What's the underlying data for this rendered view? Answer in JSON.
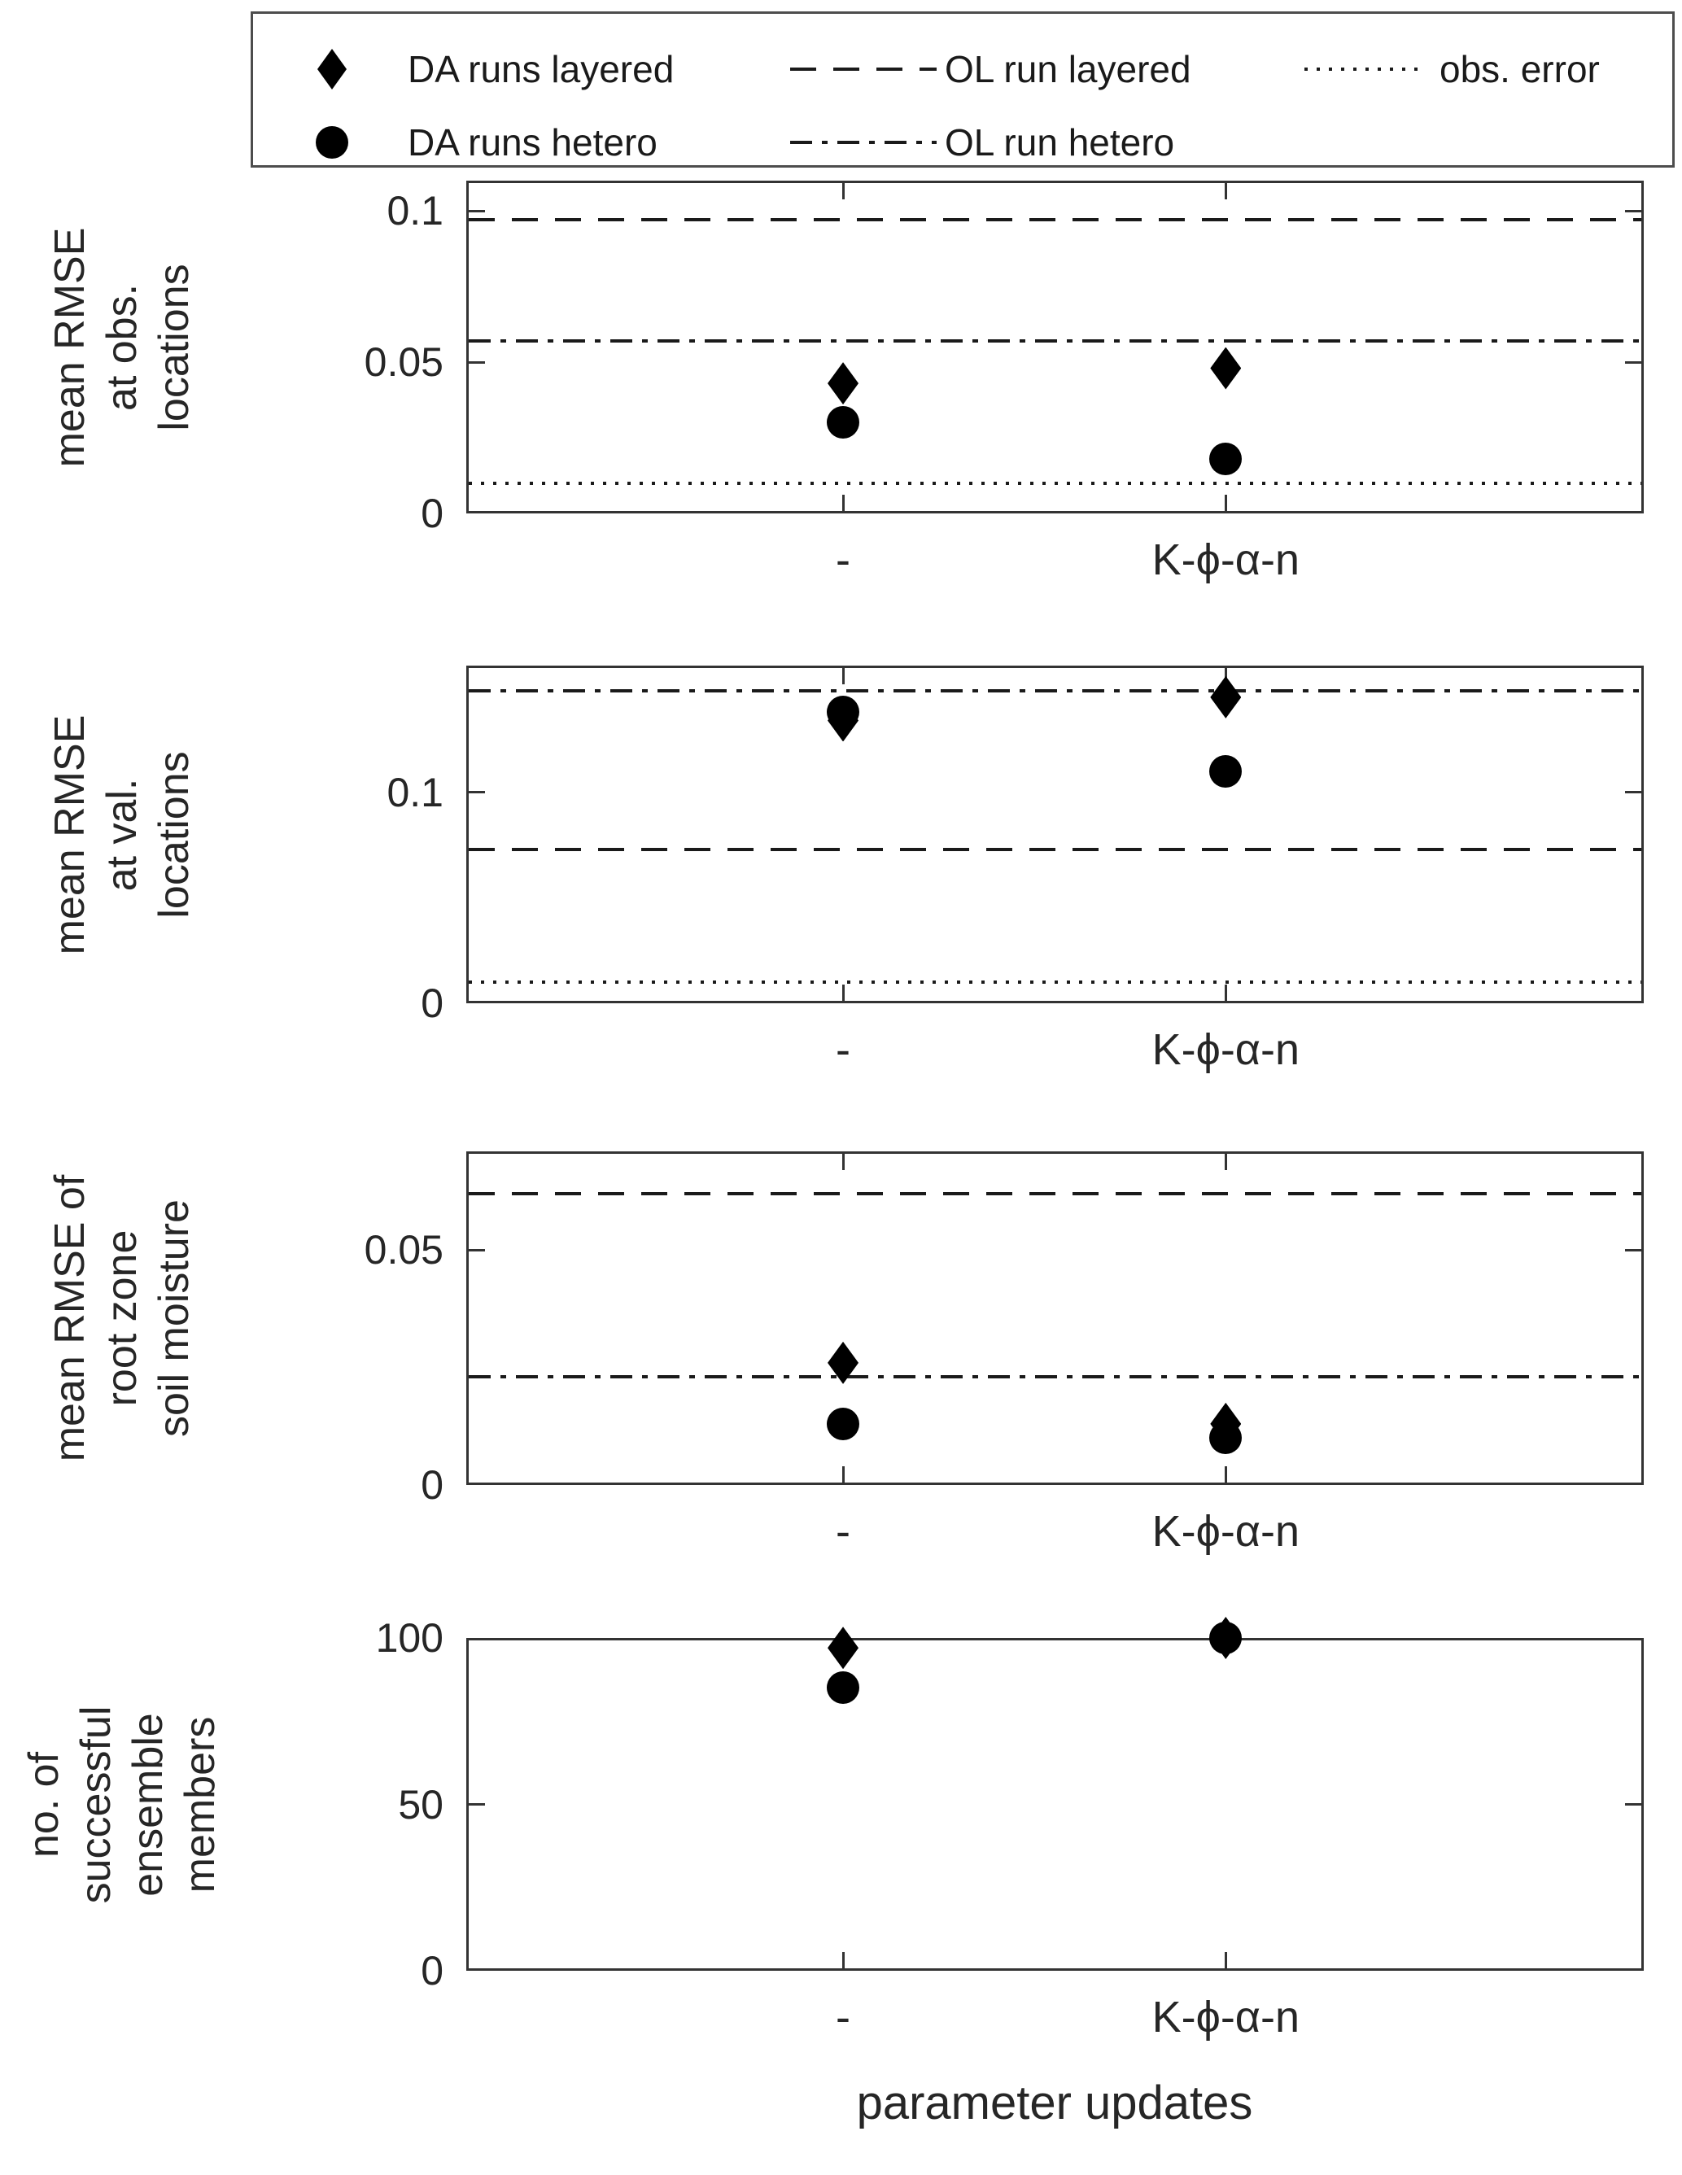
{
  "legend": {
    "items": [
      {
        "marker": "diamond",
        "label": "DA runs layered"
      },
      {
        "marker": "circle",
        "label": "DA runs hetero"
      },
      {
        "line": "dashed",
        "label": "OL run layered"
      },
      {
        "line": "dashdot",
        "label": "OL run hetero"
      },
      {
        "line": "dotted",
        "label": "obs. error"
      }
    ]
  },
  "xlabel": "parameter updates",
  "categories": [
    "-",
    "K-ϕ-α-n"
  ],
  "chart_data": [
    {
      "type": "scatter",
      "ylabel_lines": [
        "mean RMSE",
        "at obs.",
        "locations"
      ],
      "ylim": [
        0,
        0.11
      ],
      "yticks": [
        {
          "v": 0,
          "label": "0"
        },
        {
          "v": 0.05,
          "label": "0.05"
        },
        {
          "v": 0.1,
          "label": "0.1"
        }
      ],
      "categories": [
        "-",
        "K-ϕ-α-n"
      ],
      "series": [
        {
          "name": "DA runs layered",
          "marker": "diamond",
          "values": [
            0.043,
            0.048
          ]
        },
        {
          "name": "DA runs hetero",
          "marker": "circle",
          "values": [
            0.03,
            0.018
          ]
        }
      ],
      "ref_lines": [
        {
          "name": "OL run layered",
          "style": "dashed",
          "value": 0.097
        },
        {
          "name": "OL run hetero",
          "style": "dashdot",
          "value": 0.057
        },
        {
          "name": "obs. error",
          "style": "dotted",
          "value": 0.01
        }
      ]
    },
    {
      "type": "scatter",
      "ylabel_lines": [
        "mean RMSE",
        "at val.",
        "locations"
      ],
      "ylim": [
        0,
        0.16
      ],
      "yticks": [
        {
          "v": 0,
          "label": "0"
        },
        {
          "v": 0.1,
          "label": "0.1"
        }
      ],
      "categories": [
        "-",
        "K-ϕ-α-n"
      ],
      "series": [
        {
          "name": "DA runs layered",
          "marker": "diamond",
          "values": [
            0.134,
            0.145
          ]
        },
        {
          "name": "DA runs hetero",
          "marker": "circle",
          "values": [
            0.138,
            0.11
          ]
        }
      ],
      "ref_lines": [
        {
          "name": "OL run layered",
          "style": "dashed",
          "value": 0.073
        },
        {
          "name": "OL run hetero",
          "style": "dashdot",
          "value": 0.148
        },
        {
          "name": "obs. error",
          "style": "dotted",
          "value": 0.01
        }
      ]
    },
    {
      "type": "scatter",
      "ylabel_lines": [
        "mean RMSE of",
        "root zone",
        "soil moisture"
      ],
      "ylim": [
        0,
        0.071
      ],
      "yticks": [
        {
          "v": 0,
          "label": "0"
        },
        {
          "v": 0.05,
          "label": "0.05"
        }
      ],
      "categories": [
        "-",
        "K-ϕ-α-n"
      ],
      "series": [
        {
          "name": "DA runs layered",
          "marker": "diamond",
          "values": [
            0.026,
            0.013
          ]
        },
        {
          "name": "DA runs hetero",
          "marker": "circle",
          "values": [
            0.013,
            0.01
          ]
        }
      ],
      "ref_lines": [
        {
          "name": "OL run layered",
          "style": "dashed",
          "value": 0.062
        },
        {
          "name": "OL run hetero",
          "style": "dashdot",
          "value": 0.023
        }
      ]
    },
    {
      "type": "scatter",
      "ylabel_lines": [
        "no. of",
        "successful",
        "ensemble",
        "members"
      ],
      "ylim": [
        0,
        100
      ],
      "yticks": [
        {
          "v": 0,
          "label": "0"
        },
        {
          "v": 50,
          "label": "50"
        },
        {
          "v": 100,
          "label": "100"
        }
      ],
      "categories": [
        "-",
        "K-ϕ-α-n"
      ],
      "series": [
        {
          "name": "DA runs layered",
          "marker": "diamond",
          "values": [
            97,
            100
          ]
        },
        {
          "name": "DA runs hetero",
          "marker": "circle",
          "values": [
            85,
            100
          ]
        }
      ],
      "ref_lines": []
    }
  ],
  "colors": {
    "marker": "#000000",
    "line": "#1a1a1a",
    "axis": "#333333",
    "text": "#262626"
  }
}
